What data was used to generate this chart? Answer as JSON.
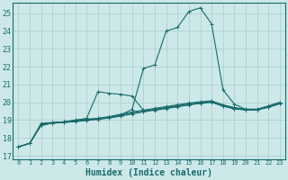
{
  "xlabel": "Humidex (Indice chaleur)",
  "bg_color": "#cce8e8",
  "grid_color": "#b8d8d8",
  "line_color": "#1a6b6b",
  "xlim": [
    -0.5,
    23.5
  ],
  "ylim": [
    16.8,
    25.6
  ],
  "yticks": [
    17,
    18,
    19,
    20,
    21,
    22,
    23,
    24,
    25
  ],
  "xticks": [
    0,
    1,
    2,
    3,
    4,
    5,
    6,
    7,
    8,
    9,
    10,
    11,
    12,
    13,
    14,
    15,
    16,
    17,
    18,
    19,
    20,
    21,
    22,
    23
  ],
  "series": [
    {
      "x": [
        0,
        1,
        2,
        3,
        4,
        5,
        6,
        7,
        8,
        9,
        10,
        11,
        12,
        13,
        14,
        15,
        16,
        17,
        18,
        19,
        20,
        21,
        22,
        23
      ],
      "y": [
        17.5,
        17.7,
        18.7,
        18.85,
        18.9,
        19.0,
        19.05,
        19.1,
        19.15,
        19.3,
        19.6,
        21.9,
        22.1,
        24.0,
        24.2,
        25.1,
        25.3,
        24.4,
        20.7,
        19.9,
        19.6,
        19.6,
        19.8,
        20.0
      ]
    },
    {
      "x": [
        2,
        3,
        4,
        5,
        6,
        7,
        8,
        9,
        10,
        11,
        12,
        13,
        14,
        15,
        16,
        17,
        18,
        19,
        20,
        21,
        22,
        23
      ],
      "y": [
        18.7,
        18.85,
        18.9,
        19.0,
        19.1,
        20.6,
        20.5,
        20.45,
        20.35,
        19.55,
        19.55,
        19.65,
        19.75,
        19.85,
        19.95,
        20.05,
        19.85,
        19.7,
        19.6,
        19.6,
        19.75,
        19.95
      ]
    },
    {
      "x": [
        0,
        1,
        2,
        3,
        4,
        5,
        6,
        7,
        8,
        9,
        10,
        11,
        12,
        13,
        14,
        15,
        16,
        17,
        18,
        19,
        20,
        21,
        22,
        23
      ],
      "y": [
        17.5,
        17.7,
        18.75,
        18.82,
        18.87,
        18.92,
        18.98,
        19.04,
        19.12,
        19.22,
        19.35,
        19.46,
        19.57,
        19.67,
        19.77,
        19.87,
        19.94,
        20.0,
        19.78,
        19.63,
        19.57,
        19.57,
        19.72,
        19.92
      ]
    },
    {
      "x": [
        0,
        1,
        2,
        3,
        4,
        5,
        6,
        7,
        8,
        9,
        10,
        11,
        12,
        13,
        14,
        15,
        16,
        17,
        18,
        19,
        20,
        21,
        22,
        23
      ],
      "y": [
        17.5,
        17.7,
        18.78,
        18.84,
        18.88,
        18.93,
        19.0,
        19.07,
        19.16,
        19.27,
        19.4,
        19.5,
        19.61,
        19.71,
        19.81,
        19.91,
        19.97,
        20.02,
        19.8,
        19.65,
        19.58,
        19.58,
        19.73,
        19.93
      ]
    },
    {
      "x": [
        0,
        1,
        2,
        3,
        4,
        5,
        6,
        7,
        8,
        9,
        10,
        11,
        12,
        13,
        14,
        15,
        16,
        17,
        18,
        19,
        20,
        21,
        22,
        23
      ],
      "y": [
        17.5,
        17.7,
        18.82,
        18.87,
        18.9,
        18.95,
        19.02,
        19.1,
        19.2,
        19.33,
        19.46,
        19.56,
        19.66,
        19.76,
        19.86,
        19.96,
        20.03,
        20.08,
        19.85,
        19.68,
        19.62,
        19.62,
        19.77,
        19.97
      ]
    }
  ]
}
